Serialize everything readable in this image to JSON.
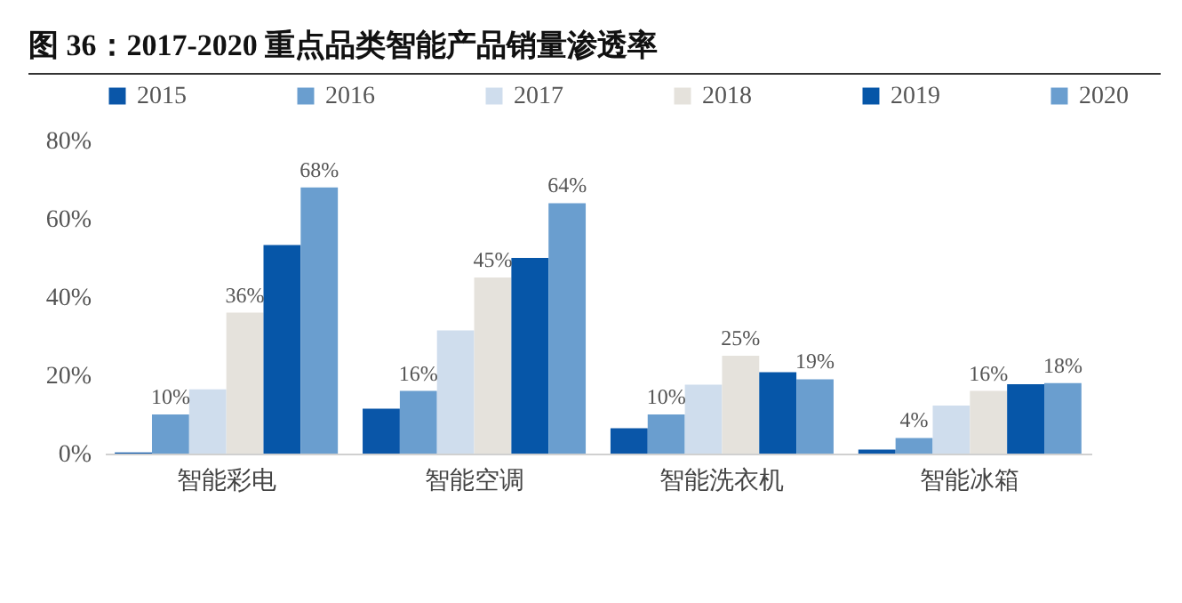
{
  "chart_data": {
    "type": "bar",
    "title": "图 36：2017-2020 重点品类智能产品销量渗透率",
    "categories": [
      "智能彩电",
      "智能空调",
      "智能洗衣机",
      "智能冰箱"
    ],
    "series": [
      {
        "name": "2015",
        "color": "#0a56a8",
        "values": [
          0.3,
          11.5,
          6.5,
          1
        ]
      },
      {
        "name": "2016",
        "color": "#6a9ecf",
        "values": [
          10,
          16,
          10,
          4
        ],
        "value_labels": [
          "10%",
          "16%",
          "10%",
          "4%"
        ]
      },
      {
        "name": "2017",
        "color": "#cfdded",
        "values": [
          16.4,
          31.5,
          17.6,
          12.3
        ]
      },
      {
        "name": "2018",
        "color": "#e5e2dc",
        "values": [
          36,
          45,
          25,
          16
        ],
        "value_labels": [
          "36%",
          "45%",
          "25%",
          "16%"
        ]
      },
      {
        "name": "2019",
        "color": "#0656a8",
        "values": [
          53.3,
          50,
          20.8,
          17.7
        ]
      },
      {
        "name": "2020",
        "color": "#6a9ecf",
        "values": [
          68,
          64,
          19,
          18
        ],
        "value_labels": [
          "68%",
          "64%",
          "19%",
          "18%"
        ]
      }
    ],
    "ylim": [
      0,
      80
    ],
    "yticks": [
      {
        "value": 0,
        "label": "0%"
      },
      {
        "value": 20,
        "label": "20%"
      },
      {
        "value": 40,
        "label": "40%"
      },
      {
        "value": 60,
        "label": "60%"
      },
      {
        "value": 80,
        "label": "80%"
      }
    ],
    "grid": false,
    "legend": "top"
  }
}
